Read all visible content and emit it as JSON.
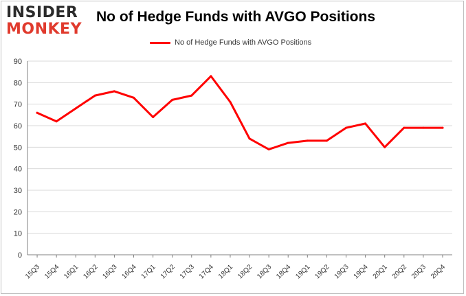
{
  "logo": {
    "top": "INSIDER",
    "bottom": "MONKEY"
  },
  "chart_data": {
    "type": "line",
    "title": "No of Hedge Funds with AVGO Positions",
    "xlabel": "",
    "ylabel": "",
    "categories": [
      "15Q3",
      "15Q4",
      "16Q1",
      "16Q2",
      "16Q3",
      "16Q4",
      "17Q1",
      "17Q2",
      "17Q3",
      "17Q4",
      "18Q1",
      "18Q2",
      "18Q3",
      "18Q4",
      "19Q1",
      "19Q2",
      "19Q3",
      "19Q4",
      "20Q1",
      "20Q2",
      "20Q3",
      "20Q4"
    ],
    "series": [
      {
        "name": "No of Hedge Funds with AVGO Positions",
        "color": "#ff0000",
        "values": [
          66,
          62,
          68,
          74,
          76,
          73,
          64,
          72,
          74,
          83,
          71,
          54,
          49,
          52,
          53,
          53,
          59,
          61,
          50,
          59,
          59,
          59
        ]
      }
    ],
    "ylim": [
      0,
      90
    ],
    "yticks": [
      0,
      10,
      20,
      30,
      40,
      50,
      60,
      70,
      80,
      90
    ],
    "grid": true,
    "legend_position": "top-center"
  }
}
